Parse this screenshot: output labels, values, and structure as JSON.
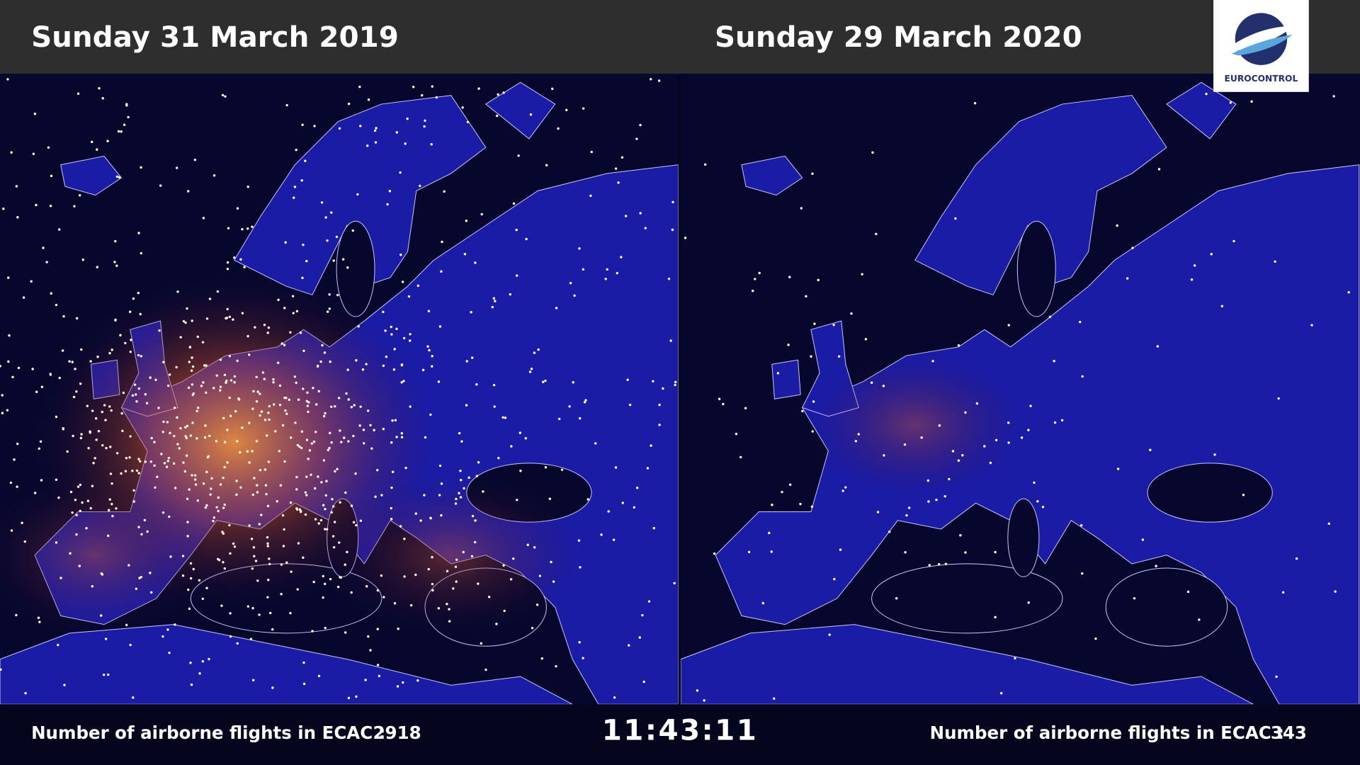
{
  "header": {
    "left_title": "Sunday 31 March 2019",
    "right_title": "Sunday 29 March 2020",
    "logo": "EUROCONTROL"
  },
  "footer": {
    "left": {
      "label": "Number of airborne flights in ECAC :",
      "count": 2918
    },
    "time": "11:43:11",
    "right": {
      "label": "Number of airborne flights in ECAC :",
      "count": 343
    }
  }
}
